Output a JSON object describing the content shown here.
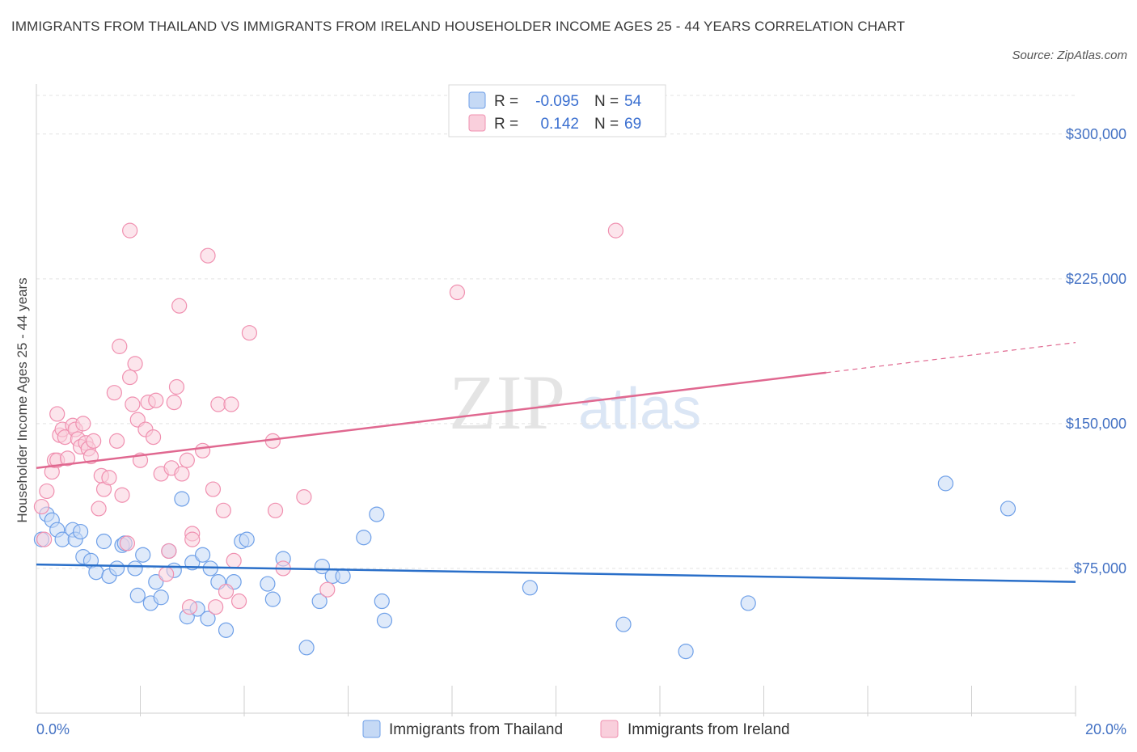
{
  "title": "IMMIGRANTS FROM THAILAND VS IMMIGRANTS FROM IRELAND HOUSEHOLDER INCOME AGES 25 - 44 YEARS CORRELATION CHART",
  "source": "Source: ZipAtlas.com",
  "watermark": {
    "zip": "ZIP",
    "atlas": "atlas"
  },
  "chart_data": {
    "type": "scatter",
    "ylabel": "Householder Income Ages 25 - 44 years",
    "xlim": [
      0,
      20
    ],
    "ylim": [
      0,
      320000
    ],
    "x_tick_labels": {
      "min": "0.0%",
      "max": "20.0%"
    },
    "y_ticks": [
      {
        "value": 75000,
        "label": "$75,000"
      },
      {
        "value": 150000,
        "label": "$150,000"
      },
      {
        "value": 225000,
        "label": "$225,000"
      },
      {
        "value": 300000,
        "label": "$300,000"
      }
    ],
    "grid": true,
    "legend_position": "top-center",
    "series": [
      {
        "name": "Immigrants from Thailand",
        "color": "#6fa0e8",
        "fill": "#c5d9f5",
        "line_color": "#2a6fc9",
        "stats": {
          "r_label": "R = ",
          "r": "-0.095",
          "n_label": "N = ",
          "n": "54"
        },
        "trend": {
          "x0": 0,
          "y0": 77000,
          "x1": 20,
          "y1": 68000,
          "dashed_from": null
        },
        "points": [
          [
            0.1,
            90000
          ],
          [
            0.2,
            103000
          ],
          [
            0.3,
            100000
          ],
          [
            0.4,
            95000
          ],
          [
            0.5,
            90000
          ],
          [
            0.7,
            95000
          ],
          [
            0.75,
            90000
          ],
          [
            0.85,
            94000
          ],
          [
            0.9,
            81000
          ],
          [
            1.05,
            79000
          ],
          [
            1.15,
            73000
          ],
          [
            1.3,
            89000
          ],
          [
            1.4,
            71000
          ],
          [
            1.55,
            75000
          ],
          [
            1.65,
            87000
          ],
          [
            1.7,
            88000
          ],
          [
            1.9,
            75000
          ],
          [
            1.95,
            61000
          ],
          [
            2.05,
            82000
          ],
          [
            2.2,
            57000
          ],
          [
            2.3,
            68000
          ],
          [
            2.4,
            60000
          ],
          [
            2.55,
            84000
          ],
          [
            2.65,
            74000
          ],
          [
            2.8,
            111000
          ],
          [
            2.9,
            50000
          ],
          [
            3.0,
            78000
          ],
          [
            3.1,
            54000
          ],
          [
            3.2,
            82000
          ],
          [
            3.3,
            49000
          ],
          [
            3.35,
            75000
          ],
          [
            3.5,
            68000
          ],
          [
            3.65,
            43000
          ],
          [
            3.8,
            68000
          ],
          [
            3.95,
            89000
          ],
          [
            4.05,
            90000
          ],
          [
            4.45,
            67000
          ],
          [
            4.55,
            59000
          ],
          [
            4.75,
            80000
          ],
          [
            5.2,
            34000
          ],
          [
            5.45,
            58000
          ],
          [
            5.5,
            76000
          ],
          [
            5.7,
            71000
          ],
          [
            5.9,
            71000
          ],
          [
            6.3,
            91000
          ],
          [
            6.55,
            103000
          ],
          [
            6.65,
            58000
          ],
          [
            6.7,
            48000
          ],
          [
            9.5,
            65000
          ],
          [
            11.3,
            46000
          ],
          [
            12.5,
            32000
          ],
          [
            13.7,
            57000
          ],
          [
            17.5,
            119000
          ],
          [
            18.7,
            106000
          ]
        ]
      },
      {
        "name": "Immigrants from Ireland",
        "color": "#f090b0",
        "fill": "#f9cfdc",
        "line_color": "#e06890",
        "stats": {
          "r_label": "R = ",
          "r": "0.142",
          "n_label": "N = ",
          "n": "69"
        },
        "trend": {
          "x0": 0,
          "y0": 127000,
          "x1": 20,
          "y1": 192000,
          "dashed_from": 15.2
        },
        "points": [
          [
            0.1,
            107000
          ],
          [
            0.15,
            90000
          ],
          [
            0.2,
            115000
          ],
          [
            0.3,
            125000
          ],
          [
            0.35,
            131000
          ],
          [
            0.4,
            131000
          ],
          [
            0.4,
            155000
          ],
          [
            0.45,
            144000
          ],
          [
            0.5,
            147000
          ],
          [
            0.55,
            143000
          ],
          [
            0.6,
            132000
          ],
          [
            0.7,
            149000
          ],
          [
            0.75,
            147000
          ],
          [
            0.8,
            142000
          ],
          [
            0.85,
            138000
          ],
          [
            0.9,
            150000
          ],
          [
            0.95,
            140000
          ],
          [
            1.0,
            137000
          ],
          [
            1.05,
            133000
          ],
          [
            1.1,
            141000
          ],
          [
            1.2,
            106000
          ],
          [
            1.25,
            123000
          ],
          [
            1.3,
            116000
          ],
          [
            1.4,
            122000
          ],
          [
            1.5,
            166000
          ],
          [
            1.55,
            141000
          ],
          [
            1.6,
            190000
          ],
          [
            1.65,
            113000
          ],
          [
            1.75,
            88000
          ],
          [
            1.8,
            174000
          ],
          [
            1.85,
            160000
          ],
          [
            1.8,
            250000
          ],
          [
            1.9,
            181000
          ],
          [
            1.95,
            152000
          ],
          [
            2.0,
            131000
          ],
          [
            2.1,
            147000
          ],
          [
            2.15,
            161000
          ],
          [
            2.25,
            143000
          ],
          [
            2.3,
            162000
          ],
          [
            2.4,
            124000
          ],
          [
            2.5,
            72000
          ],
          [
            2.55,
            84000
          ],
          [
            2.6,
            127000
          ],
          [
            2.65,
            161000
          ],
          [
            2.7,
            169000
          ],
          [
            2.75,
            211000
          ],
          [
            2.8,
            124000
          ],
          [
            2.9,
            131000
          ],
          [
            2.95,
            55000
          ],
          [
            3.0,
            93000
          ],
          [
            3.2,
            136000
          ],
          [
            3.3,
            237000
          ],
          [
            3.4,
            116000
          ],
          [
            3.45,
            55000
          ],
          [
            3.5,
            160000
          ],
          [
            3.6,
            105000
          ],
          [
            3.65,
            63000
          ],
          [
            3.75,
            160000
          ],
          [
            3.8,
            79000
          ],
          [
            3.9,
            58000
          ],
          [
            4.1,
            197000
          ],
          [
            4.55,
            141000
          ],
          [
            4.6,
            105000
          ],
          [
            4.75,
            75000
          ],
          [
            5.15,
            112000
          ],
          [
            5.6,
            64000
          ],
          [
            8.1,
            218000
          ],
          [
            11.15,
            250000
          ],
          [
            3.0,
            90000
          ]
        ]
      }
    ]
  }
}
